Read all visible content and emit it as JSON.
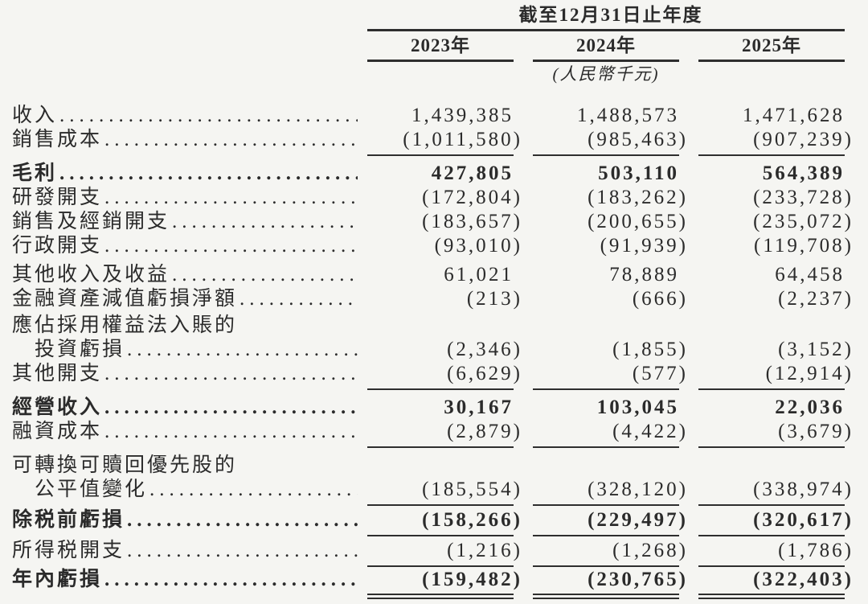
{
  "table": {
    "period_header": "截至12月31日止年度",
    "columns": [
      "2023年",
      "2024年",
      "2025年"
    ],
    "unit_note": "(人民幣千元)",
    "rows": [
      {
        "label": "收入",
        "values": [
          "1,439,385",
          "1,488,573",
          "1,471,628"
        ]
      },
      {
        "label": "銷售成本",
        "values": [
          "(1,011,580)",
          "(985,463)",
          "(907,239)"
        ]
      },
      {
        "label": "毛利",
        "values": [
          "427,805",
          "503,110",
          "564,389"
        ]
      },
      {
        "label": "研發開支",
        "values": [
          "(172,804)",
          "(183,262)",
          "(233,728)"
        ]
      },
      {
        "label": "銷售及經銷開支",
        "values": [
          "(183,657)",
          "(200,655)",
          "(235,072)"
        ]
      },
      {
        "label": "行政開支",
        "values": [
          "(93,010)",
          "(91,939)",
          "(119,708)"
        ]
      },
      {
        "label": "其他收入及收益",
        "values": [
          "61,021",
          "78,889",
          "64,458"
        ]
      },
      {
        "label": "金融資產減值虧損淨額",
        "values": [
          "(213)",
          "(666)",
          "(2,237)"
        ]
      },
      {
        "label": "應佔採用權益法入賬的",
        "label2": "投資虧損",
        "values": [
          "(2,346)",
          "(1,855)",
          "(3,152)"
        ]
      },
      {
        "label": "其他開支",
        "values": [
          "(6,629)",
          "(577)",
          "(12,914)"
        ]
      },
      {
        "label": "經營收入",
        "values": [
          "30,167",
          "103,045",
          "22,036"
        ]
      },
      {
        "label": "融資成本",
        "values": [
          "(2,879)",
          "(4,422)",
          "(3,679)"
        ]
      },
      {
        "label": "可轉換可贖回優先股的",
        "label2": "公平值變化",
        "values": [
          "(185,554)",
          "(328,120)",
          "(338,974)"
        ]
      },
      {
        "label": "除税前虧損",
        "values": [
          "(158,266)",
          "(229,497)",
          "(320,617)"
        ]
      },
      {
        "label": "所得税開支",
        "values": [
          "(1,216)",
          "(1,268)",
          "(1,786)"
        ]
      },
      {
        "label": "年內虧損",
        "values": [
          "(159,482)",
          "(230,765)",
          "(322,403)"
        ]
      }
    ]
  },
  "colors": {
    "background": "#f5f5f2",
    "text": "#2b2b2b",
    "rule": "#2e2e2e"
  }
}
